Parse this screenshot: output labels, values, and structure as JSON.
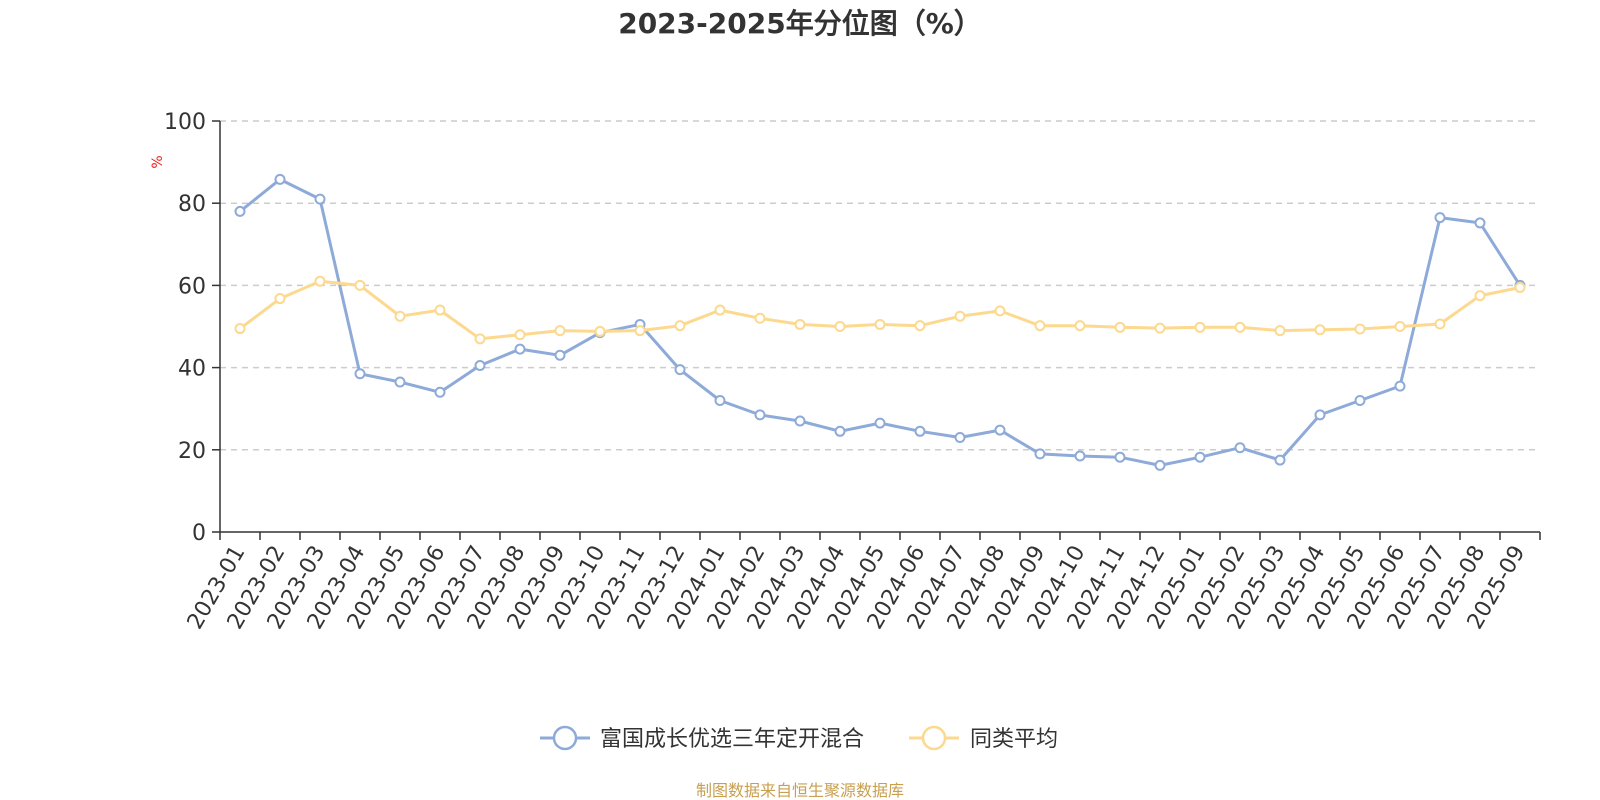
{
  "chart_data": {
    "type": "line",
    "title": "2023-2025年分位图（%）",
    "ylabel": "%",
    "xlabel": "",
    "ylim": [
      0,
      100
    ],
    "yticks": [
      0,
      20,
      40,
      60,
      80,
      100
    ],
    "grid": true,
    "legend_position": "bottom-center",
    "categories": [
      "2023-01",
      "2023-02",
      "2023-03",
      "2023-04",
      "2023-05",
      "2023-06",
      "2023-07",
      "2023-08",
      "2023-09",
      "2023-10",
      "2023-11",
      "2023-12",
      "2024-01",
      "2024-02",
      "2024-03",
      "2024-04",
      "2024-05",
      "2024-06",
      "2024-07",
      "2024-08",
      "2024-09",
      "2024-10",
      "2024-11",
      "2024-12",
      "2025-01",
      "2025-02",
      "2025-03",
      "2025-04",
      "2025-05",
      "2025-06",
      "2025-07",
      "2025-08",
      "2025-09"
    ],
    "series": [
      {
        "name": "富国成长优选三年定开混合",
        "color": "#8eaad8",
        "values": [
          78,
          85.8,
          81,
          38.5,
          36.5,
          34,
          40.5,
          44.5,
          43,
          48.5,
          50.5,
          39.5,
          32,
          28.5,
          27,
          24.5,
          26.5,
          24.5,
          23,
          24.8,
          19,
          18.5,
          18.2,
          16.2,
          18.2,
          20.5,
          17.5,
          28.5,
          32,
          35.5,
          76.5,
          75.2,
          60
        ]
      },
      {
        "name": "同类平均",
        "color": "#fcd98e",
        "values": [
          49.5,
          56.8,
          61,
          60,
          52.5,
          54,
          47,
          48,
          49,
          48.8,
          49,
          50.2,
          54,
          52,
          50.5,
          50,
          50.5,
          50.2,
          52.5,
          53.8,
          50.2,
          50.2,
          49.8,
          49.6,
          49.8,
          49.8,
          49,
          49.2,
          49.4,
          50,
          50.6,
          57.5,
          59.5
        ]
      }
    ]
  },
  "footer": {
    "source_text": "制图数据来自恒生聚源数据库"
  }
}
